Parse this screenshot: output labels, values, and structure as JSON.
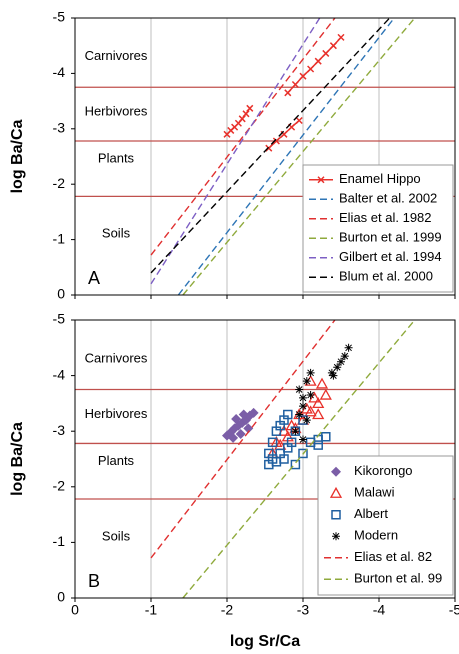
{
  "chart_data": [
    {
      "type": "scatter",
      "panel_label": "A",
      "y_label": "log Ba/Ca",
      "xlim": [
        0,
        -5
      ],
      "xticks": [
        0,
        -1,
        -2,
        -3,
        -4,
        -5
      ],
      "show_xtick_labels": false,
      "ylim": [
        0,
        -5
      ],
      "yticks": [
        0,
        -1,
        -2,
        -3,
        -4,
        -5
      ],
      "grid": true,
      "hlines": [
        -3.75,
        -2.78,
        -1.78
      ],
      "hline_color": "#c0504d",
      "regions": [
        "Carnivores",
        "Herbivores",
        "Plants",
        "Soils"
      ],
      "legend": "lower right",
      "series": [
        {
          "name": "Enamel Hippo",
          "color": "#e8312b",
          "style": "solid",
          "marker": "x",
          "x": [
            -2.0,
            -2.05,
            -2.1,
            -2.15,
            -2.2,
            -2.25,
            -2.3,
            null,
            -2.55,
            -2.65,
            -2.75,
            -2.85,
            -2.95,
            null,
            -2.8,
            -2.9,
            -3.0,
            -3.1,
            -3.2,
            -3.3,
            -3.4,
            -3.5
          ],
          "y": [
            -2.9,
            -2.97,
            -3.03,
            -3.1,
            -3.18,
            -3.27,
            -3.37,
            null,
            -2.65,
            -2.78,
            -2.9,
            -3.03,
            -3.15,
            null,
            -3.65,
            -3.8,
            -3.95,
            -4.08,
            -4.22,
            -4.36,
            -4.5,
            -4.65
          ]
        },
        {
          "name": "Balter et al. 2002",
          "color": "#2e75b6",
          "style": "dashed",
          "x": [
            -1.36,
            -4.2
          ],
          "y": [
            0,
            -5
          ]
        },
        {
          "name": "Elias et al. 1982",
          "color": "#e03030",
          "style": "dashed",
          "x": [
            -1,
            -3.42
          ],
          "y": [
            -0.72,
            -5
          ]
        },
        {
          "name": "Burton et al. 1999",
          "color": "#8faa3c",
          "style": "dashed",
          "x": [
            -1.42,
            -4.47
          ],
          "y": [
            0,
            -5
          ]
        },
        {
          "name": "Gilbert et al. 1994",
          "color": "#7d5fc4",
          "style": "dashed",
          "x": [
            -1,
            -3.22
          ],
          "y": [
            -0.2,
            -5
          ]
        },
        {
          "name": "Blum et al. 2000",
          "color": "#000000",
          "style": "dashed",
          "x": [
            -1,
            -4.14
          ],
          "y": [
            -0.4,
            -5
          ]
        }
      ]
    },
    {
      "type": "scatter",
      "panel_label": "B",
      "y_label": "log Ba/Ca",
      "x_label": "log Sr/Ca",
      "xlim": [
        0,
        -5
      ],
      "xticks": [
        0,
        -1,
        -2,
        -3,
        -4,
        -5
      ],
      "show_xtick_labels": true,
      "ylim": [
        0,
        -5
      ],
      "yticks": [
        0,
        -1,
        -2,
        -3,
        -4,
        -5
      ],
      "grid": true,
      "hlines": [
        -3.75,
        -2.78,
        -1.78
      ],
      "hline_color": "#c0504d",
      "regions": [
        "Carnivores",
        "Herbivores",
        "Plants",
        "Soils"
      ],
      "legend": "lower right",
      "series": [
        {
          "name": "Kikorongo",
          "color": "#7b5ea7",
          "style": "none",
          "marker": "diamond",
          "x": [
            -2.0,
            -2.05,
            -2.1,
            -2.15,
            -2.2,
            -2.25,
            -2.3,
            -2.35,
            -2.08,
            -2.18,
            -2.28,
            -2.12,
            -2.22
          ],
          "y": [
            -2.92,
            -2.98,
            -3.05,
            -3.1,
            -3.15,
            -3.2,
            -3.28,
            -3.33,
            -2.88,
            -2.95,
            -3.05,
            -3.22,
            -3.3
          ]
        },
        {
          "name": "Malawi",
          "color": "#e8312b",
          "style": "none",
          "marker": "triangle",
          "x": [
            -2.6,
            -2.7,
            -2.8,
            -2.9,
            -3.0,
            -3.1,
            -3.2,
            -3.3,
            -2.65,
            -2.85,
            -3.05,
            -3.15,
            -3.25,
            -2.75,
            -2.95,
            -3.1,
            -3.2
          ],
          "y": [
            -2.6,
            -2.75,
            -2.9,
            -3.05,
            -3.2,
            -3.35,
            -3.5,
            -3.65,
            -2.8,
            -3.1,
            -3.4,
            -3.6,
            -3.85,
            -3.0,
            -3.3,
            -3.9,
            -3.3
          ]
        },
        {
          "name": "Albert",
          "color": "#1f5fa0",
          "style": "none",
          "marker": "square",
          "x": [
            -2.55,
            -2.6,
            -2.65,
            -2.7,
            -2.75,
            -2.8,
            -2.85,
            -2.9,
            -3.0,
            -3.1,
            -3.2,
            -3.3,
            -2.6,
            -2.7,
            -2.8,
            -2.9,
            -3.0,
            -2.65,
            -2.75,
            -2.55,
            -3.2
          ],
          "y": [
            -2.4,
            -2.5,
            -2.45,
            -2.6,
            -2.5,
            -2.7,
            -2.8,
            -3.0,
            -3.2,
            -2.8,
            -2.85,
            -2.9,
            -2.8,
            -3.1,
            -3.3,
            -2.4,
            -2.6,
            -3.0,
            -3.2,
            -2.6,
            -2.75
          ]
        },
        {
          "name": "Modern",
          "color": "#000000",
          "style": "none",
          "marker": "asterisk",
          "x": [
            -2.9,
            -2.95,
            -3.0,
            -3.05,
            -3.1,
            -2.95,
            -3.0,
            -3.05,
            -3.1,
            -3.0,
            -3.4,
            -3.45,
            -3.5,
            -3.55,
            -3.6,
            -3.38
          ],
          "y": [
            -3.0,
            -3.3,
            -3.6,
            -3.9,
            -4.05,
            -3.75,
            -3.45,
            -3.2,
            -3.65,
            -2.85,
            -4.0,
            -4.15,
            -4.25,
            -4.35,
            -4.5,
            -4.05
          ]
        },
        {
          "name": "Elias et al. 82",
          "color": "#e03030",
          "style": "dashed",
          "x": [
            -1,
            -3.42
          ],
          "y": [
            -0.72,
            -5
          ]
        },
        {
          "name": "Burton et al. 99",
          "color": "#8faa3c",
          "style": "dashed",
          "x": [
            -1.42,
            -4.47
          ],
          "y": [
            0,
            -5
          ]
        }
      ]
    }
  ]
}
